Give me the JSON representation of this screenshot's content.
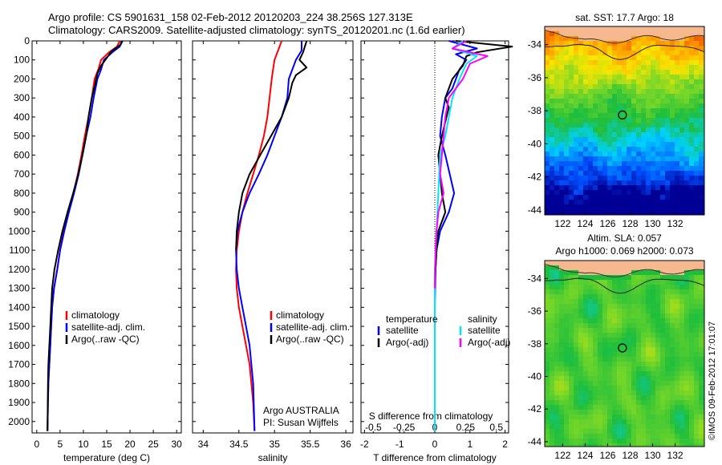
{
  "header": {
    "line1": "Argo profile: CS 5901631_158 02-Feb-2012 20120203_224 38.256S 127.313E",
    "line2": "Climatology: CARS2009. Satellite-adjusted climatology: synTS_20120201.nc (1.6d earlier)"
  },
  "stamp": "©IMOS 09-Feb-2012 17:01:07",
  "colors": {
    "climatology": "#ff0000",
    "satellite": "#0000ff",
    "argo": "#000000",
    "sal_satellite": "#00e5ff",
    "sal_argo": "#ff00ff",
    "land": "#f6b88f"
  },
  "chart_data": [
    {
      "type": "line",
      "xlabel": "temperature (deg C)",
      "xlim": [
        -1,
        31
      ],
      "xticks": [
        0,
        5,
        10,
        15,
        20,
        25,
        30
      ],
      "ylim": [
        2060,
        0
      ],
      "yticks": [
        0,
        100,
        200,
        300,
        400,
        500,
        600,
        700,
        800,
        900,
        1000,
        1100,
        1200,
        1300,
        1400,
        1500,
        1600,
        1700,
        1800,
        1900,
        2000
      ],
      "legend": [
        "climatology",
        "satellite-adj. clim.",
        "Argo(..raw -QC)"
      ],
      "series": [
        {
          "name": "climatology",
          "color": "#ff0000",
          "x": [
            17.8,
            17.2,
            15.5,
            13.8,
            13.2,
            12.4,
            11.8,
            11.1,
            10.3,
            9.6,
            8.8,
            7.9,
            6.8,
            5.8,
            5.0,
            4.4,
            3.7,
            3.3,
            3.1,
            2.9,
            2.7,
            2.5,
            2.4,
            2.3
          ],
          "y": [
            0,
            30,
            60,
            100,
            150,
            200,
            300,
            400,
            500,
            600,
            700,
            800,
            900,
            1000,
            1100,
            1200,
            1300,
            1400,
            1500,
            1600,
            1700,
            1800,
            1900,
            2050
          ]
        },
        {
          "name": "satellite-adj. clim.",
          "color": "#0000ff",
          "x": [
            18.2,
            17.8,
            16.2,
            14.4,
            13.8,
            13.0,
            12.2,
            11.5,
            10.6,
            9.8,
            9.0,
            8.0,
            6.9,
            5.9,
            5.0,
            4.4,
            3.7,
            3.3,
            3.1,
            2.9,
            2.7,
            2.5,
            2.4,
            2.3
          ],
          "y": [
            0,
            30,
            60,
            100,
            150,
            200,
            300,
            400,
            500,
            600,
            700,
            800,
            900,
            1000,
            1100,
            1200,
            1300,
            1400,
            1500,
            1600,
            1700,
            1800,
            1900,
            2050
          ]
        },
        {
          "name": "Argo(..raw -QC)",
          "color": "#000000",
          "x": [
            18.4,
            18.0,
            16.0,
            15.0,
            13.8,
            13.0,
            12.6,
            11.8,
            11.1,
            10.6,
            9.8,
            8.9,
            7.8,
            6.6,
            5.5,
            4.6,
            3.8,
            3.3,
            3.1,
            2.9,
            2.7,
            2.5,
            2.4,
            2.3
          ],
          "y": [
            0,
            20,
            55,
            90,
            130,
            170,
            220,
            300,
            400,
            500,
            600,
            700,
            800,
            900,
            1000,
            1100,
            1200,
            1300,
            1400,
            1500,
            1600,
            1700,
            1800,
            2050
          ]
        }
      ]
    },
    {
      "type": "line",
      "xlabel": "salinity",
      "xlim": [
        33.85,
        36.1
      ],
      "xticks": [
        34,
        34.5,
        35,
        35.5,
        36
      ],
      "ylim": [
        2060,
        0
      ],
      "legend": [
        "climatology",
        "satellite-adj. clim.",
        "Argo(..raw -QC)"
      ],
      "annotation": [
        "Argo AUSTRALIA",
        "PI: Susan Wijffels"
      ],
      "series": [
        {
          "name": "climatology",
          "color": "#ff0000",
          "x": [
            35.1,
            35.05,
            35.0,
            34.98,
            34.96,
            34.93,
            34.9,
            34.85,
            34.78,
            34.7,
            34.62,
            34.55,
            34.5,
            34.47,
            34.46,
            34.47,
            34.5,
            34.55,
            34.6,
            34.65,
            34.7,
            34.72
          ],
          "y": [
            0,
            50,
            100,
            150,
            200,
            300,
            400,
            500,
            600,
            700,
            800,
            900,
            1000,
            1100,
            1200,
            1300,
            1400,
            1500,
            1600,
            1700,
            1900,
            2050
          ]
        },
        {
          "name": "satellite-adj. clim.",
          "color": "#0000ff",
          "x": [
            35.38,
            35.38,
            35.3,
            35.25,
            35.2,
            35.18,
            35.1,
            35.0,
            34.9,
            34.78,
            34.65,
            34.55,
            34.48,
            34.46,
            34.47,
            34.5,
            34.55,
            34.6,
            34.65,
            34.7,
            34.72
          ],
          "y": [
            0,
            50,
            100,
            150,
            200,
            300,
            400,
            500,
            600,
            700,
            800,
            900,
            1000,
            1100,
            1200,
            1300,
            1400,
            1500,
            1600,
            1800,
            2050
          ]
        },
        {
          "name": "Argo(..raw -QC)",
          "color": "#000000",
          "x": [
            35.45,
            35.4,
            35.35,
            35.45,
            35.3,
            35.25,
            35.2,
            35.1,
            34.95,
            34.8,
            34.65,
            34.55,
            34.5,
            34.47,
            34.46
          ],
          "y": [
            0,
            60,
            100,
            140,
            180,
            220,
            300,
            400,
            500,
            600,
            700,
            800,
            900,
            1000,
            1100
          ]
        }
      ]
    },
    {
      "type": "line",
      "xlabel": "T difference from climatology",
      "xlabel2": "S difference from climatology",
      "xlim": [
        -2.1,
        2.1
      ],
      "xticks": [
        -2,
        -1,
        0,
        1,
        2
      ],
      "xlim2": [
        -0.6,
        0.6
      ],
      "xticks2": [
        -0.5,
        -0.25,
        0,
        0.25,
        0.5
      ],
      "ylim": [
        2060,
        0
      ],
      "legend_temperature": {
        "title": "temperature",
        "items": [
          "satellite",
          "Argo(-adj)"
        ]
      },
      "legend_salinity": {
        "title": "salinity",
        "items": [
          "satellite",
          "Argo(-adj)"
        ]
      },
      "series": [
        {
          "name": "satellite",
          "color": "#0000ff",
          "x": [
            0.4,
            1.2,
            0.6,
            0.9,
            0.7,
            0.6,
            0.5,
            0.3,
            0.2,
            0.15,
            0.3,
            0.55,
            0.4,
            0.15,
            0.05,
            0.02,
            0,
            0,
            0,
            0
          ],
          "y": [
            0,
            40,
            70,
            100,
            150,
            200,
            250,
            300,
            400,
            500,
            600,
            800,
            900,
            1000,
            1100,
            1200,
            1400,
            1600,
            1800,
            2050
          ]
        },
        {
          "name": "Argo(-adj)",
          "color": "#000000",
          "x": [
            0.6,
            2.2,
            1.2,
            0.9,
            0.8,
            0.5,
            0.3,
            0.4,
            0.2,
            0.1,
            0.2,
            0.3,
            0.1,
            0.05,
            0.02,
            0
          ],
          "y": [
            0,
            30,
            60,
            80,
            130,
            200,
            300,
            350,
            500,
            600,
            800,
            900,
            1000,
            1100,
            1200,
            1300
          ]
        },
        {
          "name": "satellite",
          "color": "#00e5ff",
          "x": [
            0.8,
            0.5,
            1.2,
            0.9,
            0.7,
            0.5,
            0.4,
            0.3,
            0.15,
            0.1,
            0.05,
            0,
            0,
            0,
            0,
            0
          ],
          "y": [
            0,
            40,
            80,
            120,
            200,
            300,
            400,
            500,
            600,
            800,
            1000,
            1200,
            1400,
            1600,
            1800,
            2050
          ]
        },
        {
          "name": "Argo(-adj)",
          "color": "#ff00ff",
          "x": [
            0.9,
            0.5,
            1.5,
            1.0,
            0.8,
            0.4,
            0.3,
            0.2,
            0.15,
            0.25,
            0.1,
            0.05,
            0.02,
            0
          ],
          "y": [
            0,
            40,
            80,
            120,
            200,
            300,
            400,
            600,
            700,
            800,
            900,
            1000,
            1100,
            1300
          ]
        }
      ]
    },
    {
      "type": "heatmap",
      "title": "sat. SST: 17.7  Argo: 18",
      "xlim": [
        120.4,
        134.6
      ],
      "xticks": [
        122,
        124,
        126,
        128,
        130,
        132
      ],
      "xticklabels": [
        "122",
        "124",
        "126",
        "128",
        "130",
        "132"
      ],
      "ylim": [
        -44.3,
        -32.9
      ],
      "yticks": [
        -44,
        -42,
        -40,
        -38,
        -36,
        -34
      ],
      "profile_position": [
        127.313,
        -38.256
      ],
      "field": "sst"
    },
    {
      "type": "heatmap",
      "title": "Altim. SLA: 0.057",
      "subtitle": "Argo h1000: 0.069 h2000: 0.073",
      "xlim": [
        120.4,
        134.6
      ],
      "xticks": [
        122,
        124,
        126,
        128,
        130,
        132
      ],
      "xticklabels": [
        "122",
        "124",
        "126",
        "128",
        "130",
        "132"
      ],
      "ylim": [
        -44.3,
        -32.9
      ],
      "yticks": [
        -44,
        -42,
        -40,
        -38,
        -36,
        -34
      ],
      "profile_position": [
        127.313,
        -38.256
      ],
      "field": "sla"
    }
  ]
}
